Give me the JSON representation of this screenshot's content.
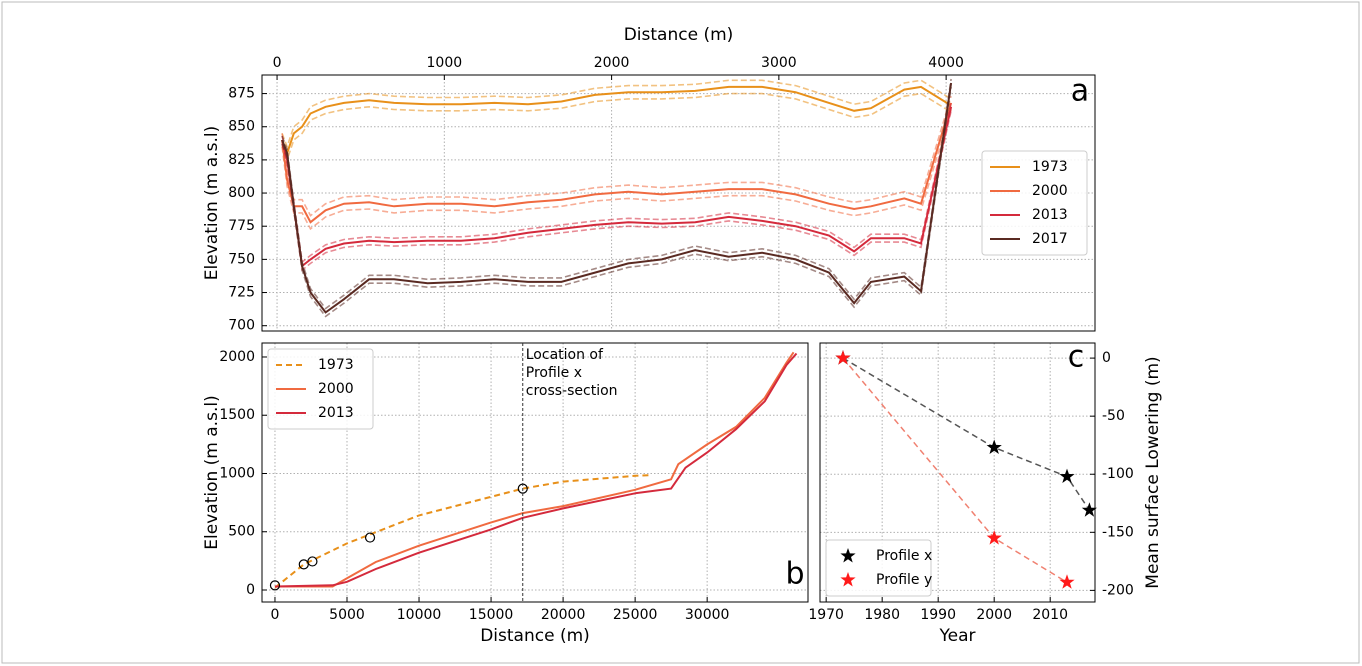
{
  "chart_data": [
    {
      "type": "line",
      "panel_label": "a",
      "xlabel": "Distance (m)",
      "ylabel": "Elevation (m a.s.l)",
      "x_axis": "top",
      "grid": true,
      "legend": "center right",
      "xlim": [
        -90,
        4890
      ],
      "ylim": [
        696,
        889
      ],
      "xticks": [
        0,
        1000,
        2000,
        3000,
        4000
      ],
      "yticks": [
        700,
        725,
        750,
        775,
        800,
        825,
        850,
        875
      ],
      "x": [
        30,
        60,
        100,
        150,
        200,
        290,
        400,
        550,
        700,
        900,
        1100,
        1300,
        1500,
        1700,
        1900,
        2100,
        2300,
        2500,
        2700,
        2900,
        3100,
        3300,
        3450,
        3550,
        3750,
        3850,
        4030
      ],
      "series": [
        {
          "name": "1973",
          "color": "#e8901a",
          "uncertainty": 5,
          "values": [
            840,
            830,
            845,
            850,
            860,
            865,
            868,
            870,
            868,
            867,
            867,
            868,
            867,
            869,
            874,
            876,
            876,
            877,
            880,
            880,
            876,
            868,
            862,
            864,
            878,
            880,
            866
          ]
        },
        {
          "name": "2000",
          "color": "#f06a40",
          "uncertainty": 5,
          "values": [
            840,
            810,
            790,
            790,
            778,
            787,
            792,
            793,
            790,
            792,
            792,
            790,
            793,
            795,
            799,
            801,
            799,
            801,
            803,
            803,
            799,
            792,
            788,
            790,
            796,
            792,
            868
          ]
        },
        {
          "name": "2013",
          "color": "#d42a3c",
          "uncertainty": 3,
          "values": [
            840,
            825,
            790,
            745,
            750,
            758,
            762,
            764,
            763,
            764,
            764,
            766,
            770,
            773,
            776,
            778,
            777,
            778,
            782,
            779,
            775,
            768,
            756,
            766,
            766,
            762,
            865
          ]
        },
        {
          "name": "2017",
          "color": "#5a2a22",
          "uncertainty": 3,
          "values": [
            840,
            830,
            790,
            745,
            725,
            710,
            720,
            735,
            735,
            732,
            733,
            735,
            733,
            733,
            740,
            747,
            750,
            757,
            752,
            755,
            750,
            740,
            717,
            733,
            737,
            726,
            883
          ]
        }
      ]
    },
    {
      "type": "line",
      "panel_label": "b",
      "xlabel": "Distance (m)",
      "ylabel": "Elevation (m a.s.l)",
      "grid": true,
      "legend": "upper left",
      "xlim": [
        -900,
        37000
      ],
      "ylim": [
        -103,
        2120
      ],
      "xticks": [
        0,
        5000,
        10000,
        15000,
        20000,
        25000,
        30000
      ],
      "yticks": [
        0,
        500,
        1000,
        1500,
        2000
      ],
      "series": [
        {
          "name": "1973",
          "color": "#e8901a",
          "style": "dashed",
          "x": [
            0,
            2000,
            5000,
            10000,
            15000,
            17200,
            20000,
            25000,
            26000
          ],
          "values": [
            20,
            220,
            400,
            640,
            800,
            870,
            930,
            980,
            985
          ]
        },
        {
          "name": "2000",
          "color": "#f06a40",
          "x": [
            0,
            4000,
            5000,
            7000,
            10000,
            15000,
            17200,
            20000,
            25000,
            27500,
            28000,
            30000,
            32000,
            34000,
            35500,
            36000
          ],
          "values": [
            30,
            30,
            100,
            240,
            380,
            580,
            660,
            720,
            860,
            950,
            1080,
            1250,
            1400,
            1650,
            1950,
            2040
          ]
        },
        {
          "name": "2013",
          "color": "#d42a3c",
          "x": [
            0,
            4000,
            5000,
            7000,
            10000,
            15000,
            17200,
            20000,
            25000,
            27500,
            28500,
            30000,
            32000,
            34000,
            35500,
            36200
          ],
          "values": [
            30,
            40,
            70,
            180,
            320,
            520,
            620,
            700,
            830,
            870,
            1050,
            1180,
            1380,
            1620,
            1930,
            2030
          ]
        }
      ],
      "points": {
        "x": [
          0,
          2000,
          2600,
          6600,
          17200
        ],
        "values": [
          40,
          220,
          245,
          450,
          870
        ]
      },
      "annotation": {
        "x": 17200,
        "text": [
          "Location of",
          "Profile x",
          "cross-section"
        ]
      }
    },
    {
      "type": "line",
      "panel_label": "c",
      "xlabel": "Year",
      "ylabel": "Mean surface Lowering (m)",
      "y_axis": "right",
      "grid": true,
      "legend": "lower left",
      "xlim": [
        1968.9,
        2018
      ],
      "ylim": [
        -210,
        13
      ],
      "xticks": [
        1970,
        1980,
        1990,
        2000,
        2010
      ],
      "yticks": [
        -200,
        -150,
        -100,
        -50,
        0
      ],
      "series": [
        {
          "name": "Profile x",
          "color": "#000000",
          "line_color": "#555555",
          "style": "dashed",
          "marker": "star",
          "x": [
            1973,
            2000,
            2013,
            2017
          ],
          "values": [
            0,
            -77,
            -102,
            -131
          ]
        },
        {
          "name": "Profile y",
          "color": "#ff1a1a",
          "line_color": "#f08070",
          "style": "dashed",
          "marker": "star",
          "x": [
            1973,
            2000,
            2013
          ],
          "values": [
            0,
            -155,
            -193
          ]
        }
      ]
    }
  ]
}
